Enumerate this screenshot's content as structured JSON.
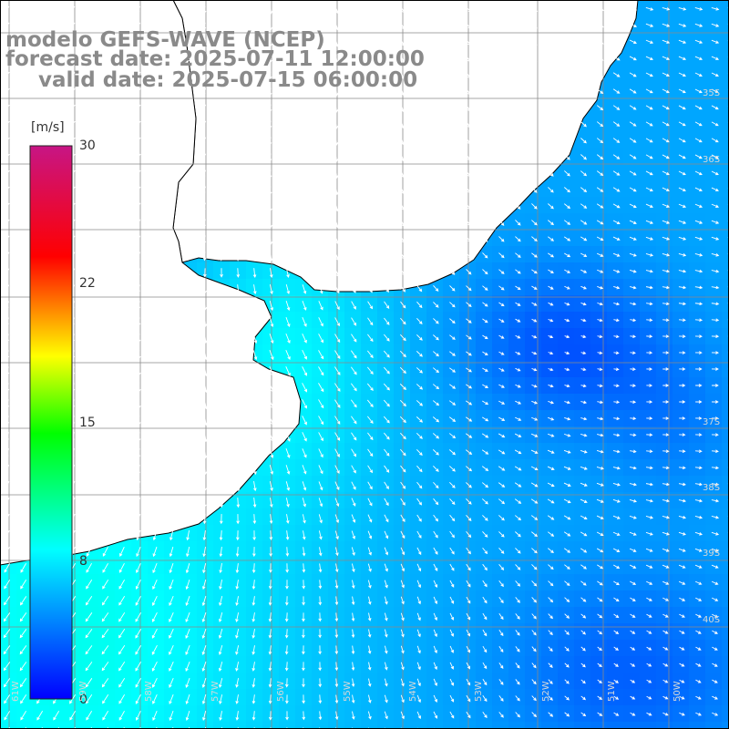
{
  "header": {
    "line1": "modelo GEFS-WAVE (NCEP)",
    "line2": "forecast date: 2025-07-11 12:00:00",
    "line3": "valid date: 2025-07-15 06:00:00"
  },
  "colorbar": {
    "unit": "[m/s]",
    "min": 0,
    "max": 30,
    "ticks": [
      "30",
      "22",
      "15",
      "8",
      "0"
    ],
    "tick_values": [
      30,
      22,
      15,
      8,
      0
    ],
    "stops": [
      "#0000ff",
      "#00ffff",
      "#00ff00",
      "#ffff00",
      "#ff0000",
      "#c71585"
    ]
  },
  "map": {
    "field": "10m wind speed with direction vectors",
    "land_color": "#ffffff",
    "coast_color": "#000000",
    "grid_color": "#8a8a8a",
    "lat_labels": [
      "35S",
      "36S",
      "37S",
      "38S",
      "39S",
      "40S"
    ],
    "lon_labels": [
      "61W",
      "59W",
      "58W",
      "57W",
      "56W",
      "55W",
      "54W",
      "53W",
      "52W",
      "51W",
      "50W"
    ]
  }
}
